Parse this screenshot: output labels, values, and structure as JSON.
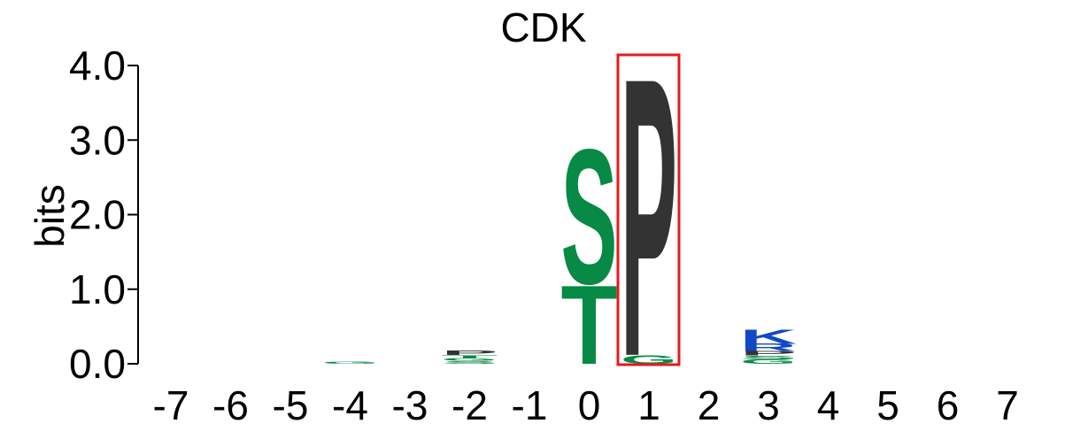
{
  "chart_data": {
    "type": "sequence-logo",
    "title": "CDK",
    "ylabel": "bits",
    "xlabel": "",
    "ylim": [
      0,
      4.0
    ],
    "yticks": [
      "0.0",
      "1.0",
      "2.0",
      "3.0",
      "4.0"
    ],
    "positions": [
      "-7",
      "-6",
      "-5",
      "-4",
      "-3",
      "-2",
      "-1",
      "0",
      "1",
      "2",
      "3",
      "4",
      "5",
      "6",
      "7"
    ],
    "colors": {
      "S": "#068a45",
      "T": "#068a45",
      "G": "#068a45",
      "P": "#333333",
      "K": "#1048c8",
      "R": "#1048c8"
    },
    "stacks": [
      {
        "position": "-7",
        "letters": []
      },
      {
        "position": "-6",
        "letters": []
      },
      {
        "position": "-5",
        "letters": []
      },
      {
        "position": "-4",
        "letters": [
          {
            "letter": "G",
            "height": 0.03
          }
        ]
      },
      {
        "position": "-3",
        "letters": []
      },
      {
        "position": "-2",
        "letters": [
          {
            "letter": "S",
            "height": 0.04
          },
          {
            "letter": "G",
            "height": 0.04
          },
          {
            "letter": "T",
            "height": 0.04
          },
          {
            "letter": "P",
            "height": 0.06
          }
        ]
      },
      {
        "position": "-1",
        "letters": []
      },
      {
        "position": "0",
        "letters": [
          {
            "letter": "T",
            "height": 1.08
          },
          {
            "letter": "S",
            "height": 1.85
          }
        ]
      },
      {
        "position": "1",
        "letters": [
          {
            "letter": "G",
            "height": 0.12
          },
          {
            "letter": "P",
            "height": 3.82
          }
        ]
      },
      {
        "position": "2",
        "letters": []
      },
      {
        "position": "3",
        "letters": [
          {
            "letter": "G",
            "height": 0.06
          },
          {
            "letter": "S",
            "height": 0.05
          },
          {
            "letter": "P",
            "height": 0.06
          },
          {
            "letter": "R",
            "height": 0.1
          },
          {
            "letter": "K",
            "height": 0.2
          }
        ]
      },
      {
        "position": "4",
        "letters": []
      },
      {
        "position": "5",
        "letters": []
      },
      {
        "position": "6",
        "letters": []
      },
      {
        "position": "7",
        "letters": []
      }
    ],
    "highlight": {
      "position": "1",
      "color": "#e41a1c"
    },
    "grid": false,
    "legend": "none"
  }
}
